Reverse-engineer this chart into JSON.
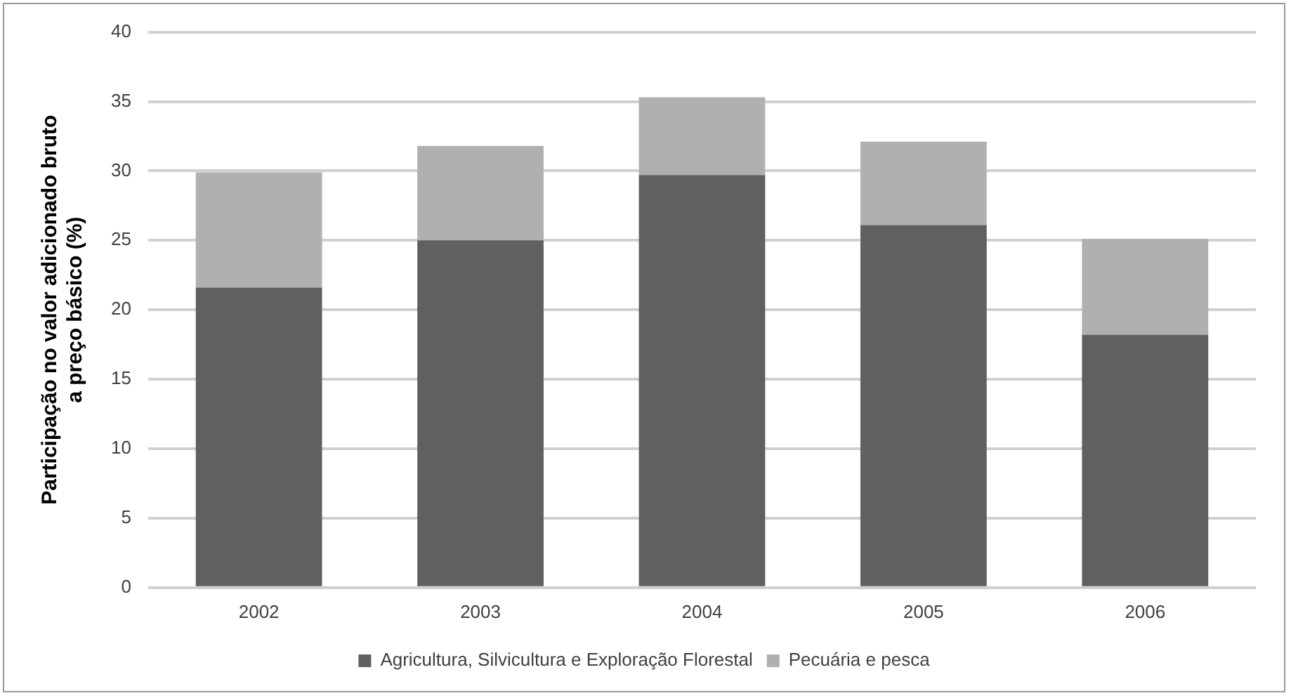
{
  "chart_data": {
    "type": "bar",
    "ylabel": "Participação no valor adicionado bruto\na preço básico (%)",
    "categories": [
      "2002",
      "2003",
      "2004",
      "2005",
      "2006"
    ],
    "series": [
      {
        "name": "Agricultura, Silvicultura e Exploração Florestal",
        "color": "#606060",
        "values": [
          21.6,
          25.0,
          29.7,
          26.1,
          18.2
        ]
      },
      {
        "name": "Pecuária e pesca",
        "color": "#b0b0b0",
        "values": [
          8.3,
          6.8,
          5.6,
          6.0,
          6.9
        ]
      }
    ],
    "stacked": true,
    "ylim": [
      0,
      40
    ],
    "yticks": [
      0,
      5,
      10,
      15,
      20,
      25,
      30,
      35,
      40
    ],
    "grid": "y",
    "legend": "bottom"
  }
}
